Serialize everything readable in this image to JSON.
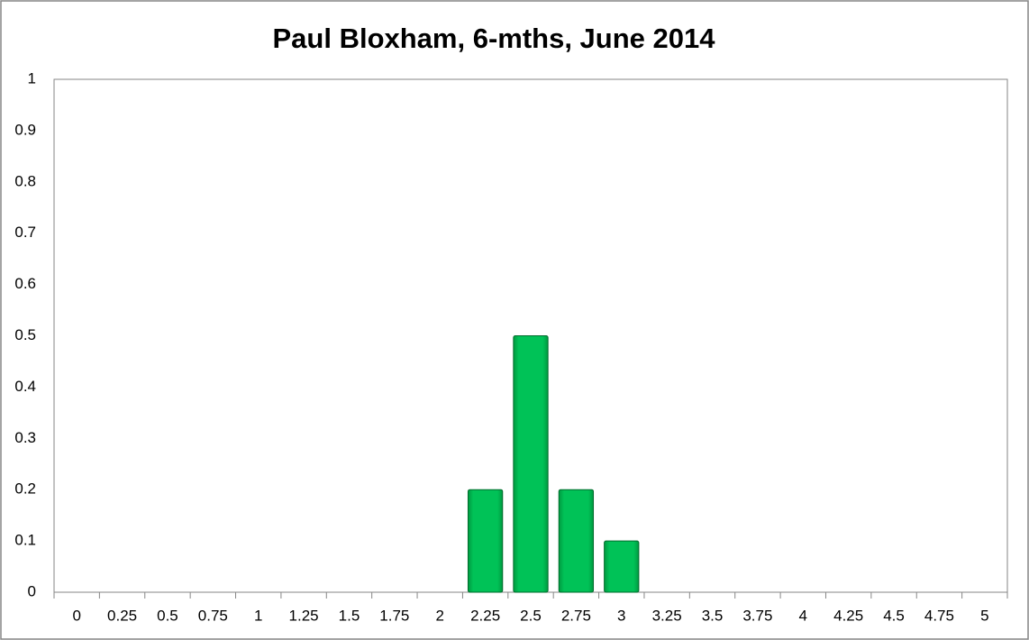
{
  "chart_data": {
    "type": "bar",
    "title": "Paul Bloxham, 6-mths, June 2014",
    "categories": [
      "0",
      "0.25",
      "0.5",
      "0.75",
      "1",
      "1.25",
      "1.5",
      "1.75",
      "2",
      "2.25",
      "2.5",
      "2.75",
      "3",
      "3.25",
      "3.5",
      "3.75",
      "4",
      "4.25",
      "4.5",
      "4.75",
      "5"
    ],
    "values": [
      0,
      0,
      0,
      0,
      0,
      0,
      0,
      0,
      0,
      0.2,
      0.5,
      0.2,
      0.1,
      0,
      0,
      0,
      0,
      0,
      0,
      0,
      0
    ],
    "color": "#00b84f",
    "ylim": [
      0,
      1
    ],
    "yticks": [
      0,
      0.1,
      0.2,
      0.3,
      0.4,
      0.5,
      0.6,
      0.7,
      0.8,
      0.9,
      1
    ],
    "grid": false
  }
}
